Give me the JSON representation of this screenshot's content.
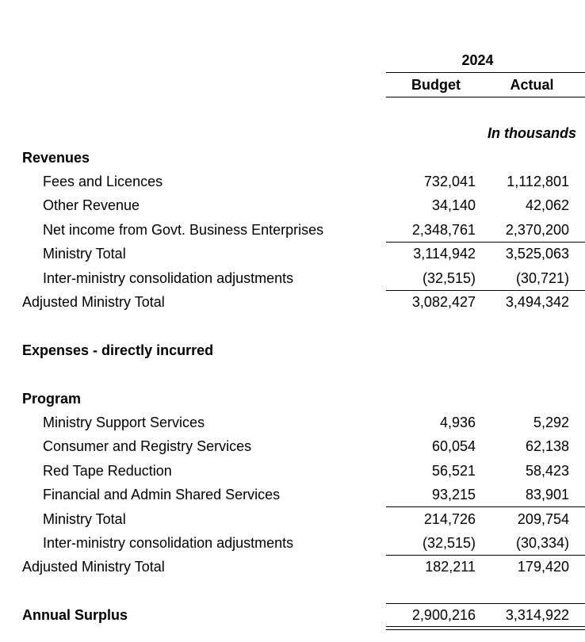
{
  "header": {
    "year": "2024",
    "budget_label": "Budget",
    "actual_label": "Actual",
    "units": "In thousands"
  },
  "revenues": {
    "heading": "Revenues",
    "items": [
      {
        "label": "Fees and Licences",
        "budget": "732,041",
        "actual": "1,112,801"
      },
      {
        "label": "Other Revenue",
        "budget": "34,140",
        "actual": "42,062"
      },
      {
        "label": "Net income from Govt. Business Enterprises",
        "budget": "2,348,761",
        "actual": "2,370,200"
      },
      {
        "label": "Ministry Total",
        "budget": "3,114,942",
        "actual": "3,525,063"
      },
      {
        "label": "Inter-ministry consolidation adjustments",
        "budget": "(32,515)",
        "actual": "(30,721)"
      }
    ],
    "adjusted": {
      "label": "Adjusted Ministry Total",
      "budget": "3,082,427",
      "actual": "3,494,342"
    }
  },
  "expenses": {
    "heading": "Expenses - directly incurred"
  },
  "program": {
    "heading": "Program",
    "items": [
      {
        "label": "Ministry Support Services",
        "budget": "4,936",
        "actual": "5,292"
      },
      {
        "label": "Consumer and Registry Services",
        "budget": "60,054",
        "actual": "62,138"
      },
      {
        "label": "Red Tape Reduction",
        "budget": "56,521",
        "actual": "58,423"
      },
      {
        "label": "Financial and Admin Shared Services",
        "budget": "93,215",
        "actual": "83,901"
      },
      {
        "label": "Ministry Total",
        "budget": "214,726",
        "actual": "209,754"
      },
      {
        "label": "Inter-ministry consolidation adjustments",
        "budget": "(32,515)",
        "actual": "(30,334)"
      }
    ],
    "adjusted": {
      "label": "Adjusted Ministry Total",
      "budget": "182,211",
      "actual": "179,420"
    }
  },
  "surplus": {
    "label": "Annual Surplus",
    "budget": "2,900,216",
    "actual": "3,314,922"
  }
}
